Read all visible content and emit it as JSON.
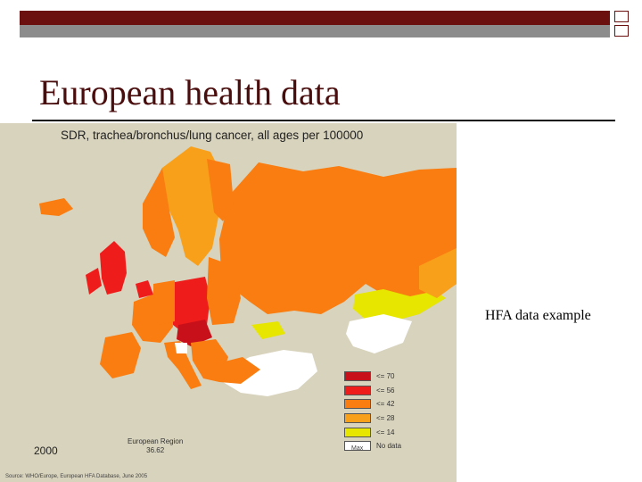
{
  "slide": {
    "title": "European health data",
    "caption": "HFA data example"
  },
  "map": {
    "title": "SDR, trachea/bronchus/lung cancer, all ages per 100000",
    "year": "2000",
    "region_label": "European Region",
    "region_value": "36.62",
    "source": "Source: WHO/Europe, European HFA Database, June 2005",
    "note": "Max",
    "legend": [
      {
        "label": "<= 70",
        "color": "#c8101a"
      },
      {
        "label": "<= 56",
        "color": "#ef1c1c"
      },
      {
        "label": "<= 42",
        "color": "#f97d10"
      },
      {
        "label": "<= 28",
        "color": "#f9a01a"
      },
      {
        "label": "<= 14",
        "color": "#e6e600"
      },
      {
        "label": "No data",
        "color": "#ffffff"
      }
    ]
  },
  "colors": {
    "accent_dark_red": "#6b0f0f",
    "band_gray": "#8c8c8c",
    "map_background": "#d8d3bd"
  }
}
